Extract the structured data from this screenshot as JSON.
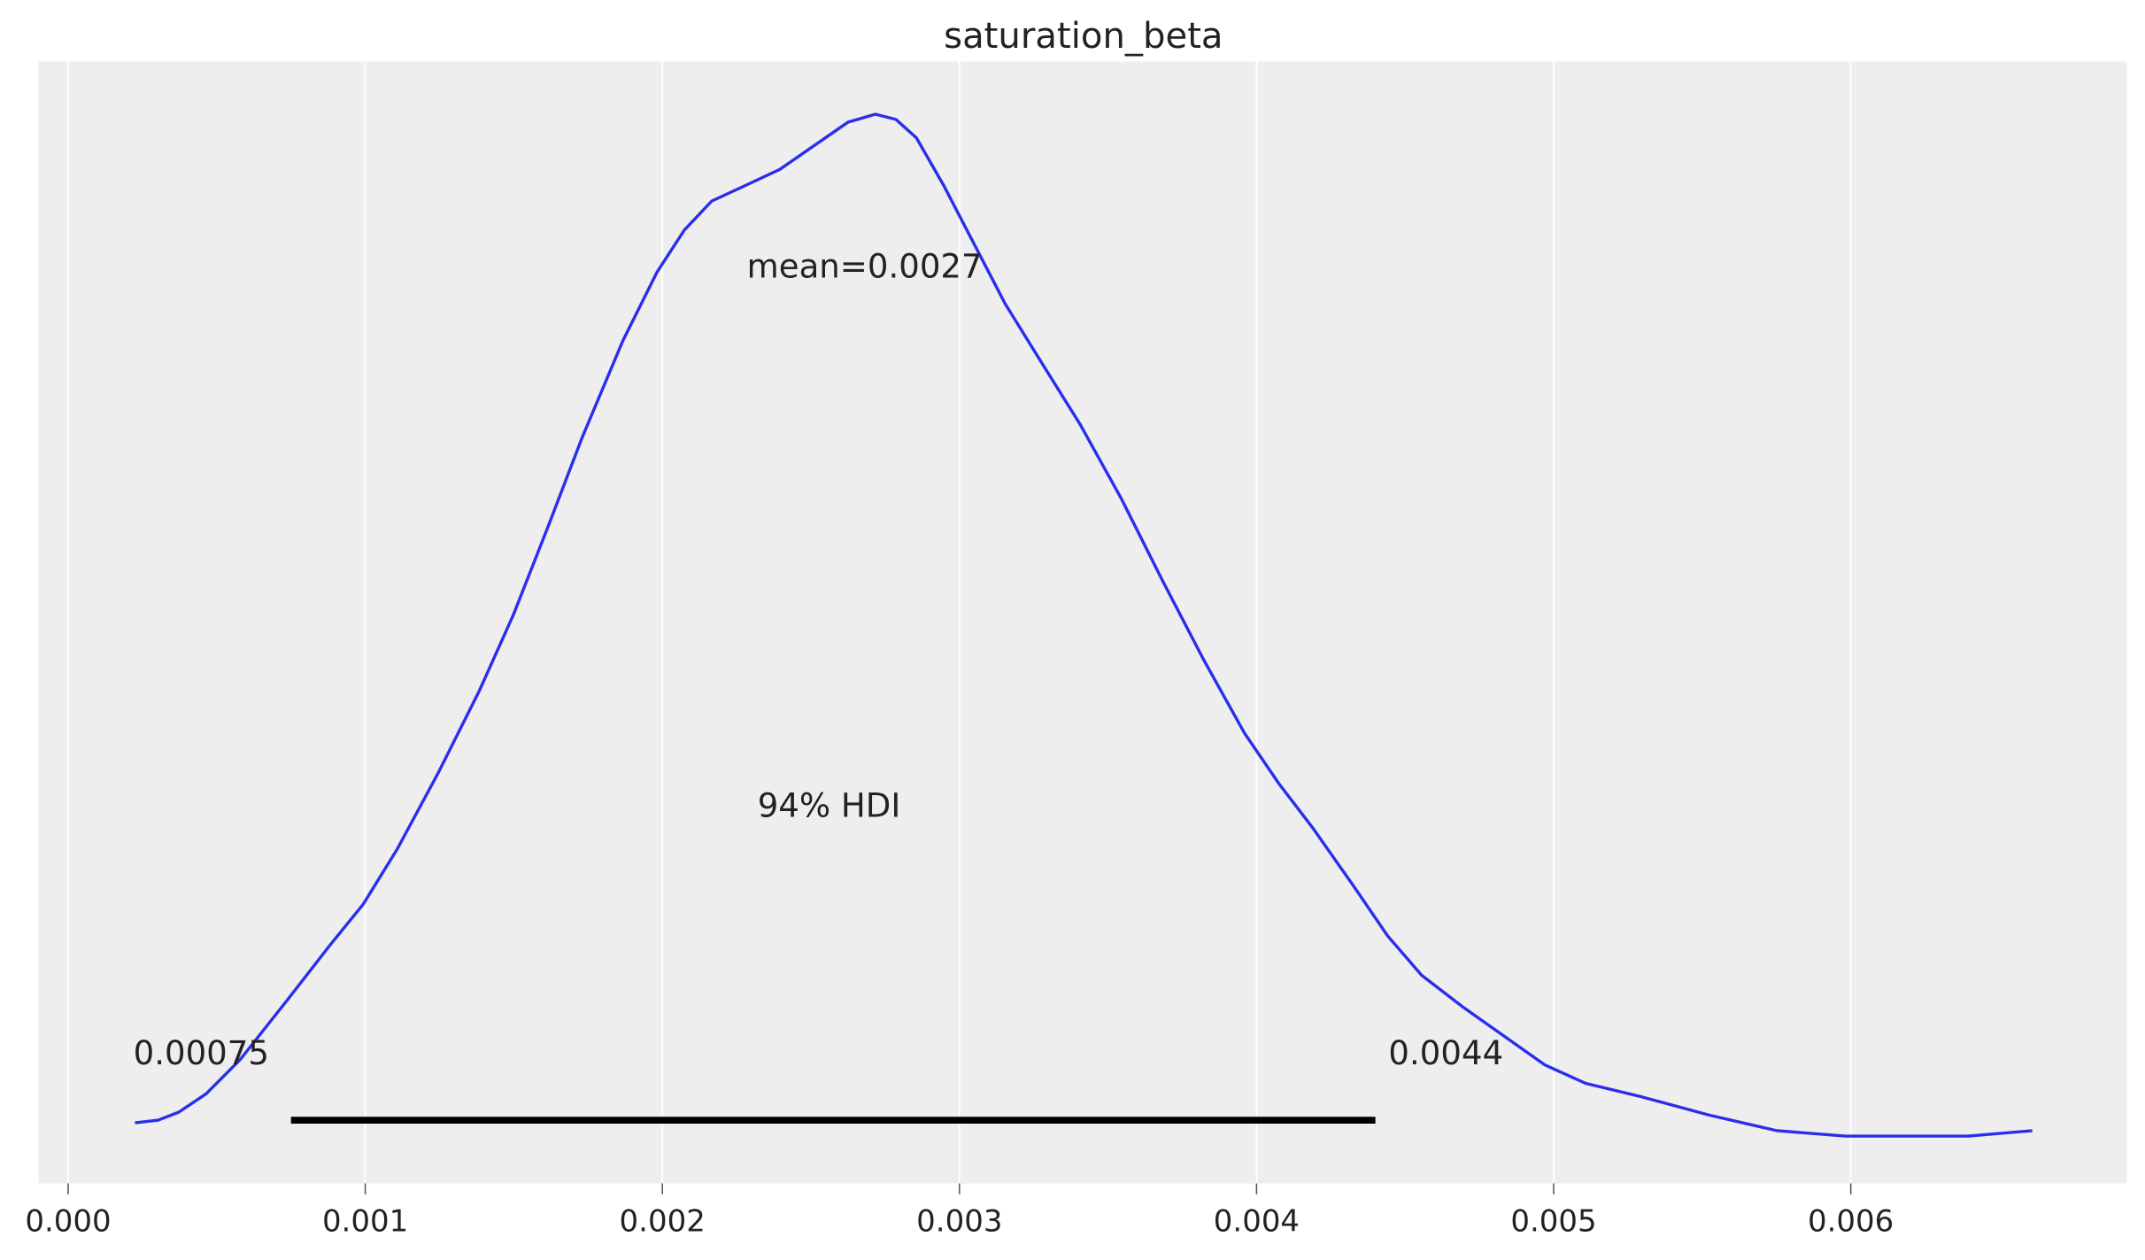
{
  "chart_data": {
    "type": "line",
    "title": "saturation_beta",
    "xlabel": "",
    "ylabel": "",
    "xlim": [
      -0.0001,
      0.00693
    ],
    "ylim": [
      -17,
      409
    ],
    "xticks": [
      0.0,
      0.001,
      0.002,
      0.003,
      0.004,
      0.005,
      0.006
    ],
    "xtick_labels": [
      "0.000",
      "0.001",
      "0.002",
      "0.003",
      "0.004",
      "0.005",
      "0.006"
    ],
    "grid": "vertical",
    "y_axis_visible": false,
    "background_color": "#eeeeee",
    "line_color": "#2a2eec",
    "series": [
      {
        "x": [
          0.000225,
          0.000303,
          0.000372,
          0.000464,
          0.000579,
          0.00074,
          0.000878,
          0.000993,
          0.001108,
          0.001246,
          0.001384,
          0.001499,
          0.001614,
          0.001729,
          0.001867,
          0.001982,
          0.002074,
          0.002166,
          0.00228,
          0.002395,
          0.00251,
          0.002625,
          0.002717,
          0.002786,
          0.002855,
          0.002947,
          0.003039,
          0.003154,
          0.003269,
          0.003407,
          0.003545,
          0.003683,
          0.003821,
          0.003959,
          0.004074,
          0.004189,
          0.004326,
          0.004441,
          0.004556,
          0.004694,
          0.004832,
          0.00497,
          0.005108,
          0.005292,
          0.005522,
          0.005752,
          0.005982,
          0.006211,
          0.006395,
          0.006611
        ],
        "y": [
          6,
          7,
          10,
          17,
          30,
          53,
          73,
          89,
          110,
          139,
          170,
          199,
          232,
          266,
          303,
          329,
          345,
          356,
          362,
          368,
          377,
          386,
          389,
          387,
          380,
          362,
          342,
          317,
          296,
          271,
          243,
          212,
          182,
          154,
          135,
          118,
          96,
          77,
          62,
          50,
          39,
          28,
          21,
          16,
          9,
          3,
          1,
          1,
          1,
          3
        ]
      }
    ],
    "mean": {
      "value": 0.0027,
      "label": "mean=0.0027"
    },
    "hdi": {
      "label": "94% HDI",
      "low": 0.00075,
      "high": 0.0044,
      "low_label": "0.00075",
      "high_label": "0.0044",
      "color": "#000000"
    }
  }
}
